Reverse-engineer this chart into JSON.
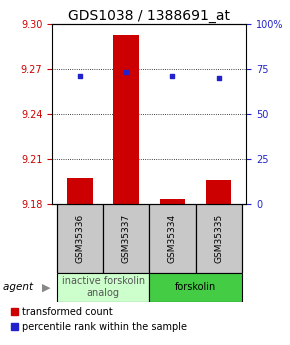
{
  "title": "GDS1038 / 1388691_at",
  "samples": [
    "GSM35336",
    "GSM35337",
    "GSM35334",
    "GSM35335"
  ],
  "bar_values": [
    9.197,
    9.293,
    9.183,
    9.196
  ],
  "bar_base": 9.18,
  "blue_values": [
    9.265,
    9.268,
    9.265,
    9.264
  ],
  "ylim_left": [
    9.18,
    9.3
  ],
  "yticks_left": [
    9.18,
    9.21,
    9.24,
    9.27,
    9.3
  ],
  "yticks_right": [
    0,
    25,
    50,
    75,
    100
  ],
  "yticks_right_labels": [
    "0",
    "25",
    "50",
    "75",
    "100%"
  ],
  "hlines": [
    9.21,
    9.24,
    9.27
  ],
  "bar_color": "#cc0000",
  "blue_color": "#2222cc",
  "group1_label": "inactive forskolin\nanalog",
  "group2_label": "forskolin",
  "group1_color": "#ccffcc",
  "group2_color": "#44cc44",
  "agent_label": "agent",
  "legend_bar_label": "transformed count",
  "legend_dot_label": "percentile rank within the sample",
  "bar_width": 0.55,
  "left_color": "#cc0000",
  "right_color": "#2222cc",
  "title_fontsize": 10,
  "axis_fontsize": 7,
  "legend_fontsize": 7,
  "group_fontsize": 7,
  "sample_fontsize": 6.5
}
